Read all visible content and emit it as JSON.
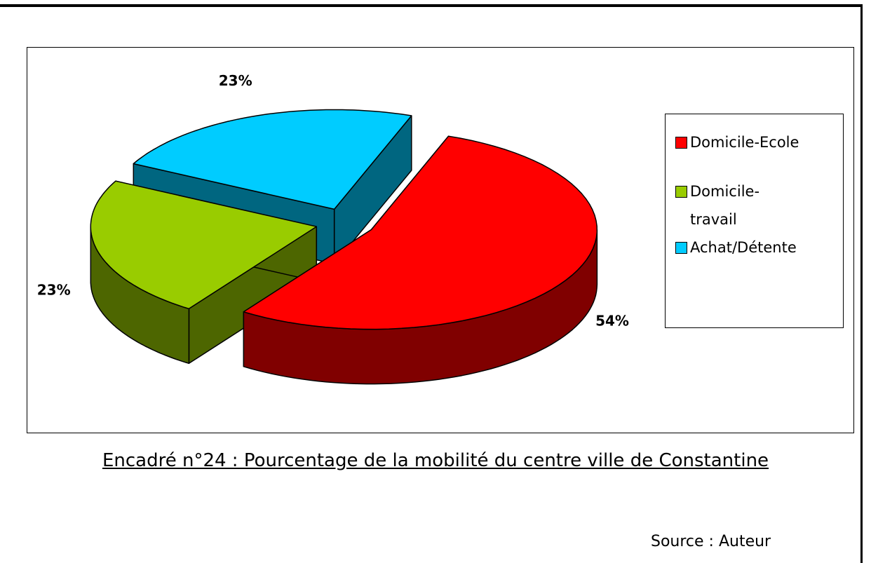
{
  "chart_data": {
    "type": "pie",
    "categories": [
      "Domicile-Ecole",
      "Domicile-travail",
      "Achat/Détente"
    ],
    "values": [
      54,
      23,
      23
    ],
    "value_labels": [
      "54%",
      "23%",
      "23%"
    ],
    "colors": [
      "#ff0000",
      "#99cc00",
      "#00ccff"
    ],
    "side_colors": [
      "#800000",
      "#4d6600",
      "#006680"
    ],
    "legend": "right"
  },
  "caption": "Encadré n°24 : Pourcentage de la mobilité du centre ville de Constantine",
  "source": "Source : Auteur"
}
